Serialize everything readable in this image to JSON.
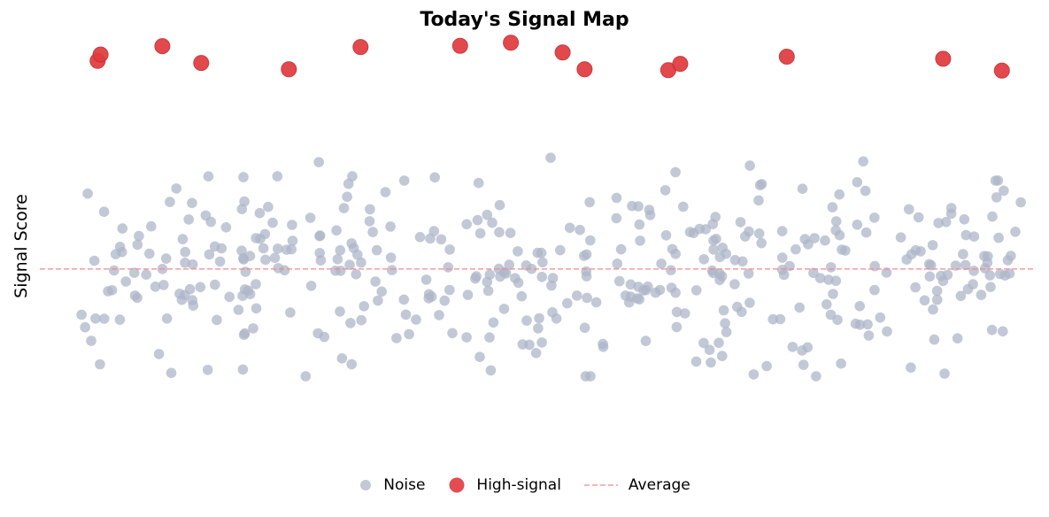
{
  "chart_data": {
    "type": "scatter",
    "title": "Today's Signal Map",
    "xlabel": "",
    "ylabel": "Signal Score",
    "xlim": [
      0,
      100
    ],
    "ylim": [
      0,
      100
    ],
    "x_axis_visible": false,
    "y_axis_visible": false,
    "grid": false,
    "legend_position": "bottom-center",
    "average": 45.5,
    "series": [
      {
        "name": "Noise",
        "color": "#aeb6c8",
        "noise_count": 420,
        "noise_y_range": [
          20,
          85
        ],
        "noise_x_range": [
          4,
          99
        ]
      },
      {
        "name": "High-signal",
        "color": "#e03a3e",
        "points": [
          {
            "x": 5.8,
            "y": 95.0
          },
          {
            "x": 6.1,
            "y": 96.5
          },
          {
            "x": 12.3,
            "y": 98.5
          },
          {
            "x": 16.2,
            "y": 94.5
          },
          {
            "x": 25.0,
            "y": 93.0
          },
          {
            "x": 32.2,
            "y": 98.3
          },
          {
            "x": 42.2,
            "y": 98.6
          },
          {
            "x": 47.3,
            "y": 99.3
          },
          {
            "x": 52.5,
            "y": 97.0
          },
          {
            "x": 54.7,
            "y": 93.0
          },
          {
            "x": 63.1,
            "y": 92.8
          },
          {
            "x": 64.3,
            "y": 94.3
          },
          {
            "x": 75.0,
            "y": 96.0
          },
          {
            "x": 90.7,
            "y": 95.5
          },
          {
            "x": 96.6,
            "y": 92.7
          }
        ]
      }
    ],
    "reference_line": {
      "name": "Average",
      "color": "#ef8a8a",
      "style": "dashed"
    }
  },
  "legend": {
    "noise_label": "Noise",
    "signal_label": "High-signal",
    "average_label": "Average"
  }
}
